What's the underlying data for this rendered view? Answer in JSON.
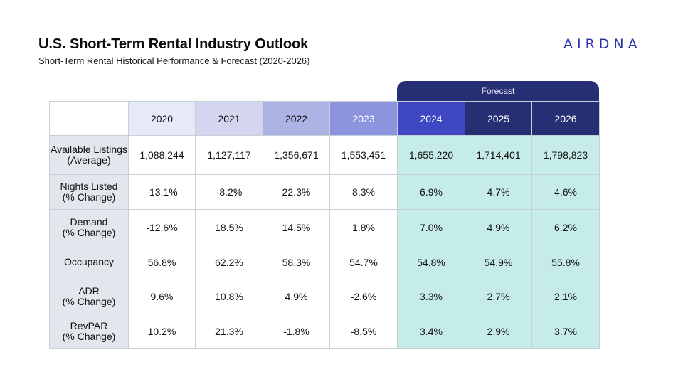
{
  "header": {
    "title": "U.S. Short-Term Rental Industry Outlook",
    "subtitle": "Short-Term Rental Historical Performance & Forecast (2020-2026)",
    "logo_text": "AIRDNA"
  },
  "forecast_label": "Forecast",
  "table": {
    "years": [
      "2020",
      "2021",
      "2022",
      "2023",
      "2024",
      "2025",
      "2026"
    ],
    "rows": [
      {
        "label_line1": "Available Listings",
        "label_line2": "(Average)",
        "values": [
          "1,088,244",
          "1,127,117",
          "1,356,671",
          "1,553,451",
          "1,655,220",
          "1,714,401",
          "1,798,823"
        ]
      },
      {
        "label_line1": "Nights Listed",
        "label_line2": "(% Change)",
        "values": [
          "-13.1%",
          "-8.2%",
          "22.3%",
          "8.3%",
          "6.9%",
          "4.7%",
          "4.6%"
        ]
      },
      {
        "label_line1": "Demand",
        "label_line2": "(% Change)",
        "values": [
          "-12.6%",
          "18.5%",
          "14.5%",
          "1.8%",
          "7.0%",
          "4.9%",
          "6.2%"
        ]
      },
      {
        "label_line1": "Occupancy",
        "label_line2": "",
        "values": [
          "56.8%",
          "62.2%",
          "58.3%",
          "54.7%",
          "54.8%",
          "54.9%",
          "55.8%"
        ]
      },
      {
        "label_line1": "ADR",
        "label_line2": "(% Change)",
        "values": [
          "9.6%",
          "10.8%",
          "4.9%",
          "-2.6%",
          "3.3%",
          "2.7%",
          "2.1%"
        ]
      },
      {
        "label_line1": "RevPAR",
        "label_line2": "(% Change)",
        "values": [
          "10.2%",
          "21.3%",
          "-1.8%",
          "-8.5%",
          "3.4%",
          "2.9%",
          "3.7%"
        ]
      }
    ]
  },
  "colors": {
    "brand": "#2a33a8",
    "forecast_header": "#262f73",
    "forecast_cell": "#c6ecea",
    "row_label_bg": "#e3e6ec"
  }
}
